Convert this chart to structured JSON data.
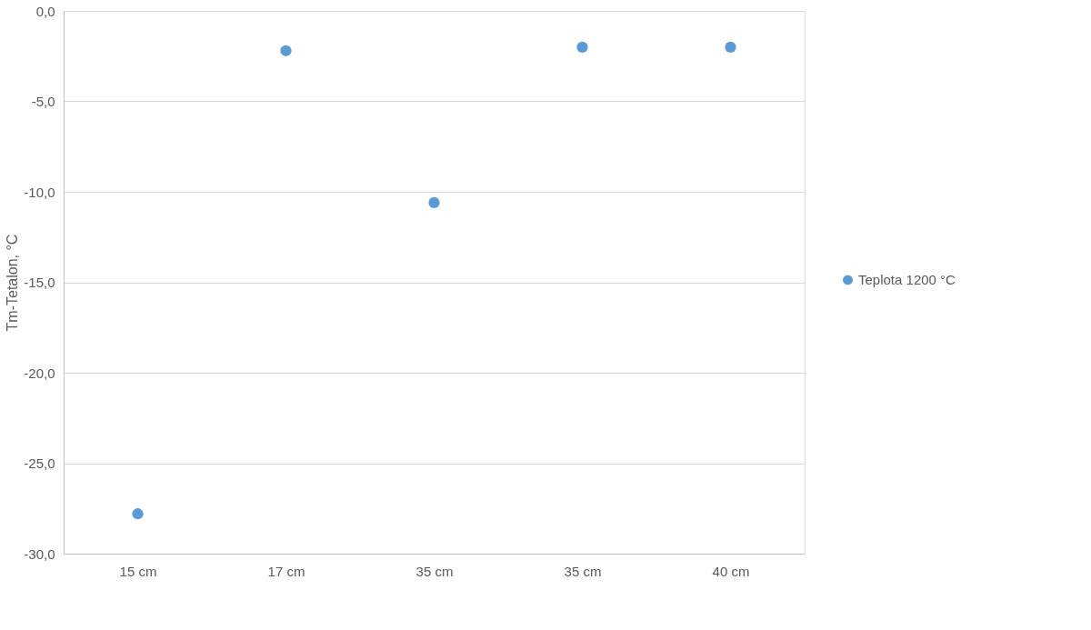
{
  "chart_data": {
    "type": "scatter",
    "ylabel": "Tm-Tetalon, °C",
    "categories": [
      "15 cm",
      "17 cm",
      "35 cm",
      "35 cm",
      "40 cm"
    ],
    "series": [
      {
        "name": "Teplota 1200 °C",
        "color": "#5b9bd5",
        "values": [
          -27.8,
          -2.2,
          -10.6,
          -2.0,
          -2.0
        ]
      }
    ],
    "ylim": [
      -30,
      0
    ],
    "yticks": [
      {
        "value": -30,
        "label": "-30,0"
      },
      {
        "value": -25,
        "label": "-25,0"
      },
      {
        "value": -20,
        "label": "-20,0"
      },
      {
        "value": -15,
        "label": "-15,0"
      },
      {
        "value": -10,
        "label": "-10,0"
      },
      {
        "value": -5,
        "label": "-5,0"
      },
      {
        "value": 0,
        "label": "0,0"
      }
    ],
    "grid": "y",
    "legend": "right",
    "marker": "circle"
  }
}
